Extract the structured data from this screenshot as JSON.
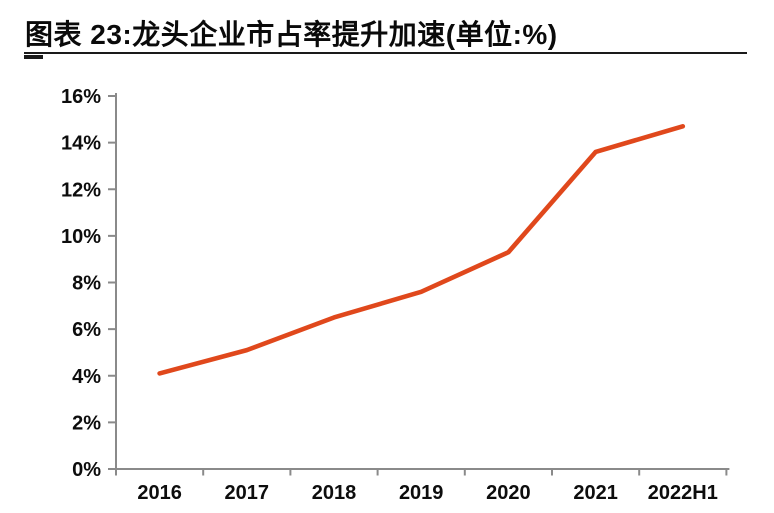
{
  "header": {
    "title": "图表 23:龙头企业市占率提升加速(单位:%)"
  },
  "chart_data": {
    "type": "line",
    "title": "图表 23:龙头企业市占率提升加速(单位:%)",
    "unit": "%",
    "categories": [
      "2016",
      "2017",
      "2018",
      "2019",
      "2020",
      "2021",
      "2022H1"
    ],
    "values": [
      4.1,
      5.1,
      6.5,
      7.6,
      9.3,
      13.6,
      14.7
    ],
    "xlabel": "",
    "ylabel": "",
    "ylim": [
      0,
      16
    ],
    "y_tick_step": 2,
    "y_tick_labels": [
      "0%",
      "2%",
      "4%",
      "6%",
      "8%",
      "10%",
      "12%",
      "14%",
      "16%"
    ],
    "grid": false,
    "legend": "none",
    "colors": {
      "line": "#e0481c",
      "axis": "#8a8a8a",
      "text": "#0d0d0d",
      "title": "#0a0a0a",
      "rule": "#1a1a1a",
      "background": "#ffffff"
    }
  }
}
